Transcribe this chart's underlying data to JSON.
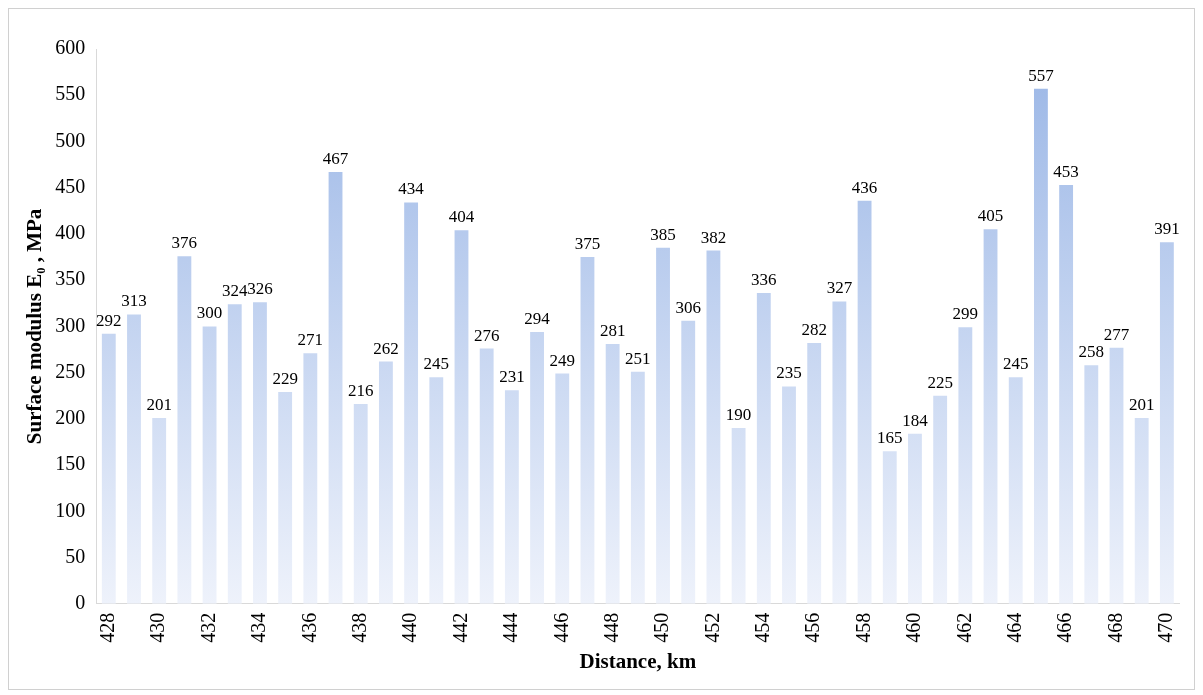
{
  "chart_data": {
    "type": "bar",
    "xlabel": "Distance, km",
    "ylabel": "Surface modulus E₀ , MPa",
    "categories": [
      "428",
      null,
      "430",
      null,
      "432",
      null,
      "434",
      null,
      "436",
      null,
      "438",
      null,
      "440",
      null,
      "442",
      null,
      "444",
      null,
      "446",
      null,
      "448",
      null,
      "450",
      null,
      "452",
      null,
      "454",
      null,
      "456",
      null,
      "458",
      null,
      "460",
      null,
      "462",
      null,
      "464",
      null,
      "466",
      null,
      "468",
      null,
      "470"
    ],
    "values": [
      292,
      313,
      201,
      376,
      300,
      324,
      326,
      229,
      271,
      467,
      216,
      262,
      434,
      245,
      404,
      276,
      231,
      294,
      249,
      375,
      281,
      251,
      385,
      306,
      382,
      190,
      336,
      235,
      282,
      327,
      436,
      165,
      184,
      225,
      299,
      405,
      245,
      557,
      453,
      258,
      277,
      201,
      391
    ],
    "color": "#9ab6e6",
    "ylim": [
      0,
      600
    ],
    "yticks": [
      0,
      50,
      100,
      150,
      200,
      250,
      300,
      350,
      400,
      450,
      500,
      550,
      600
    ],
    "grid": false,
    "legend": false,
    "data_labels": true
  }
}
